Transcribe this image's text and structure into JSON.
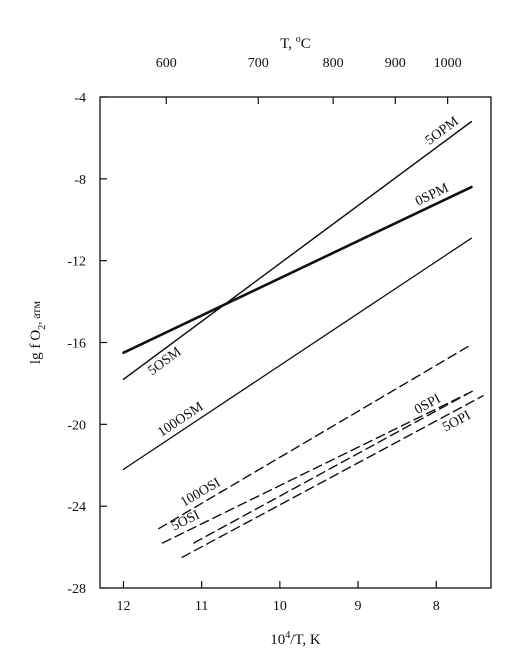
{
  "chart_data": {
    "type": "line",
    "top_axis": {
      "title": "T, °C",
      "title_main": "T, ",
      "title_sup": "o",
      "title_tail": "C",
      "ticks": [
        {
          "label": "600",
          "celsius": 600
        },
        {
          "label": "700",
          "celsius": 700
        },
        {
          "label": "800",
          "celsius": 800
        },
        {
          "label": "900",
          "celsius": 900
        },
        {
          "label": "1000",
          "celsius": 1000
        }
      ]
    },
    "xaxis": {
      "title": "10⁴/T, K",
      "title_main": "10",
      "title_sup": "4",
      "title_tail": "/T, K",
      "range": [
        12.3,
        7.3
      ],
      "ticks": [
        {
          "label": "12",
          "value": 12
        },
        {
          "label": "11",
          "value": 11
        },
        {
          "label": "10",
          "value": 10
        },
        {
          "label": "9",
          "value": 9
        },
        {
          "label": "8",
          "value": 8
        }
      ]
    },
    "yaxis": {
      "title": "lg f O₂, атм",
      "title_main": "lg f",
      "title_o": "O",
      "title_sub": "2",
      "title_unit": ", атм",
      "range": [
        -28,
        -4
      ],
      "ticks": [
        {
          "label": "-4",
          "value": -4
        },
        {
          "label": "-8",
          "value": -8
        },
        {
          "label": "-12",
          "value": -12
        },
        {
          "label": "-16",
          "value": -16
        },
        {
          "label": "-20",
          "value": -20
        },
        {
          "label": "-24",
          "value": -24
        },
        {
          "label": "-28",
          "value": -28
        }
      ]
    },
    "series": [
      {
        "name": "5OPM",
        "style": "solid-thin",
        "x": [
          12.0,
          7.55
        ],
        "y": [
          -17.8,
          -5.2
        ],
        "label_at": 7.85,
        "label_pos": "above"
      },
      {
        "name": "0SPM",
        "style": "solid-bold",
        "x": [
          12.0,
          7.55
        ],
        "y": [
          -16.5,
          -8.4
        ],
        "label_at": 8.0,
        "label_pos": "above"
      },
      {
        "name": "5OSM",
        "style": "solid-thin",
        "label_side": "left",
        "label_at": 11.55,
        "label_pos": "below"
      },
      {
        "name": "100OSM",
        "style": "solid-thin",
        "x": [
          12.0,
          7.55
        ],
        "y": [
          -22.2,
          -10.9
        ],
        "label_at": 11.2,
        "label_pos": "above"
      },
      {
        "name": "100OSI",
        "style": "dashed",
        "x": [
          11.55,
          7.55
        ],
        "y": [
          -25.1,
          -16.1
        ],
        "label_at": 10.95,
        "label_pos": "above"
      },
      {
        "name": "5OSI",
        "style": "dashed",
        "x": [
          11.5,
          7.6
        ],
        "y": [
          -25.8,
          -18.5
        ],
        "label_at": 11.15,
        "label_pos": "above"
      },
      {
        "name": "0SPI",
        "style": "dashed",
        "label_at": 8.05,
        "label_pos": "above"
      },
      {
        "name": "5OPI",
        "style": "dashed",
        "x": [
          11.25,
          7.4
        ],
        "y": [
          -26.5,
          -18.6
        ],
        "label_at": 7.8,
        "label_pos": "below"
      }
    ],
    "grid": false,
    "legend": "none"
  }
}
